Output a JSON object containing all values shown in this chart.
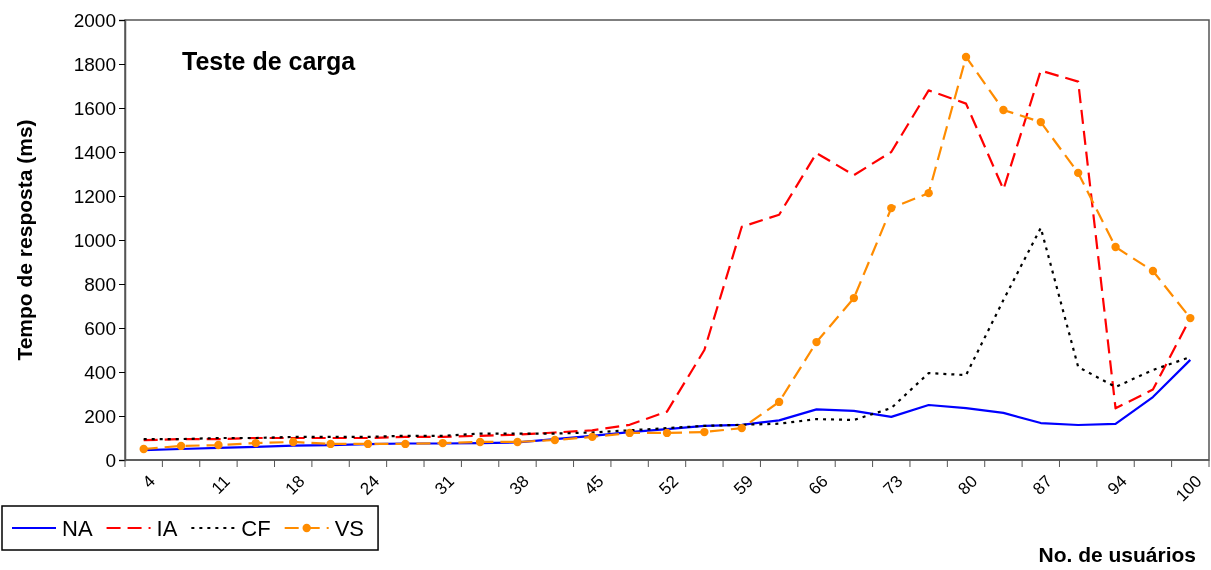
{
  "chart_data": {
    "type": "line",
    "title": "Teste de carga",
    "xlabel": "No. de usuários",
    "ylabel": "Tempo de resposta (ms)",
    "categories": [
      "4",
      null,
      "11",
      null,
      "18",
      null,
      "24",
      null,
      "31",
      null,
      "38",
      null,
      "45",
      null,
      "52",
      null,
      "59",
      null,
      "66",
      null,
      "73",
      null,
      "80",
      null,
      "87",
      null,
      "94",
      null,
      "100"
    ],
    "series": [
      {
        "name": "NA",
        "color": "#0000ff",
        "line_style": "solid",
        "marker": "none",
        "values": [
          45,
          50,
          55,
          60,
          65,
          68,
          72,
          75,
          75,
          77,
          80,
          95,
          110,
          127,
          140,
          155,
          160,
          180,
          230,
          223,
          196,
          250,
          236,
          214,
          168,
          159,
          164,
          286,
          455
        ]
      },
      {
        "name": "IA",
        "color": "#ff0000",
        "line_style": "dashed",
        "marker": "none",
        "values": [
          90,
          95,
          95,
          100,
          100,
          100,
          100,
          105,
          105,
          110,
          115,
          125,
          135,
          160,
          220,
          500,
          1060,
          1115,
          1395,
          1295,
          1400,
          1680,
          1620,
          1230,
          1770,
          1720,
          235,
          320,
          645
        ]
      },
      {
        "name": "CF",
        "color": "#000000",
        "line_style": "dotted",
        "marker": "none",
        "values": [
          95,
          95,
          100,
          100,
          105,
          105,
          105,
          110,
          110,
          120,
          120,
          120,
          125,
          135,
          145,
          155,
          160,
          165,
          186,
          182,
          236,
          395,
          386,
          727,
          1055,
          423,
          332,
          409,
          468
        ]
      },
      {
        "name": "VS",
        "color": "#ff8c00",
        "line_style": "dashed",
        "marker": "circle",
        "values": [
          50,
          64,
          68,
          77,
          82,
          73,
          73,
          73,
          77,
          82,
          82,
          91,
          105,
          123,
          123,
          127,
          145,
          264,
          536,
          736,
          1145,
          1213,
          1832,
          1591,
          1536,
          1305,
          968,
          859,
          645
        ]
      }
    ],
    "ylim": [
      0,
      2000
    ],
    "yticks": [
      0,
      200,
      400,
      600,
      800,
      1000,
      1200,
      1400,
      1600,
      1800,
      2000
    ],
    "grid": false,
    "legend": "bottom left"
  }
}
